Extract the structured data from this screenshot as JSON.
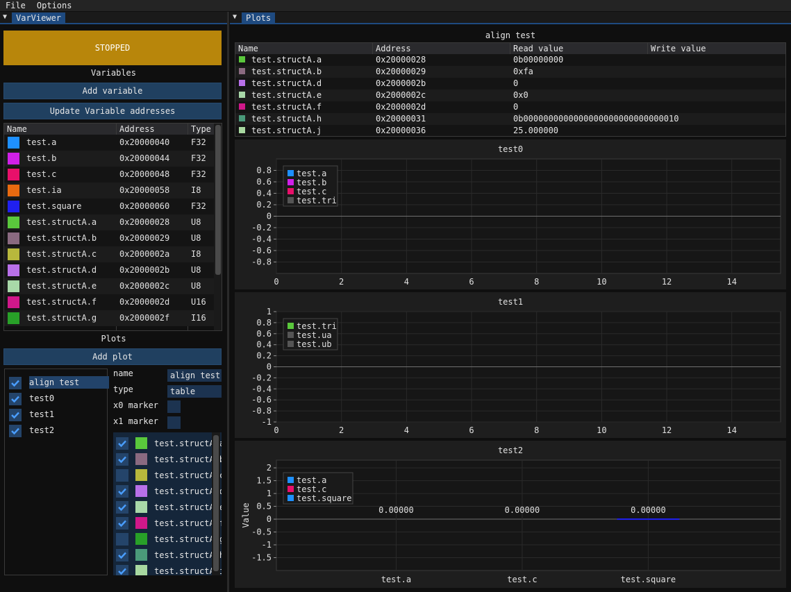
{
  "menu": {
    "file": "File",
    "options": "Options"
  },
  "varviewer": {
    "tab_title": "VarViewer",
    "status": "STOPPED",
    "status_color": "#b8860b",
    "variables_title": "Variables",
    "add_variable": "Add variable",
    "update_addresses": "Update Variable addresses",
    "table": {
      "headers": {
        "name": "Name",
        "address": "Address",
        "type": "Type"
      },
      "rows": [
        {
          "name": "test.a",
          "address": "0x20000040",
          "type": "F32",
          "color": "#1e90ff"
        },
        {
          "name": "test.b",
          "address": "0x20000044",
          "type": "F32",
          "color": "#d020e8"
        },
        {
          "name": "test.c",
          "address": "0x20000048",
          "type": "F32",
          "color": "#e8106a"
        },
        {
          "name": "test.ia",
          "address": "0x20000058",
          "type": "I8",
          "color": "#e86a10"
        },
        {
          "name": "test.square",
          "address": "0x20000060",
          "type": "F32",
          "color": "#2020f0"
        },
        {
          "name": "test.structA.a",
          "address": "0x20000028",
          "type": "U8",
          "color": "#5ac83c"
        },
        {
          "name": "test.structA.b",
          "address": "0x20000029",
          "type": "U8",
          "color": "#8a6a80"
        },
        {
          "name": "test.structA.c",
          "address": "0x2000002a",
          "type": "I8",
          "color": "#b8b83c"
        },
        {
          "name": "test.structA.d",
          "address": "0x2000002b",
          "type": "U8",
          "color": "#b870e8"
        },
        {
          "name": "test.structA.e",
          "address": "0x2000002c",
          "type": "U8",
          "color": "#a8d8a8"
        },
        {
          "name": "test.structA.f",
          "address": "0x2000002d",
          "type": "U16",
          "color": "#d0188a"
        },
        {
          "name": "test.structA.g",
          "address": "0x2000002f",
          "type": "I16",
          "color": "#28a028"
        }
      ]
    },
    "plots_title": "Plots",
    "add_plot": "Add plot",
    "plot_list": [
      {
        "label": "align test",
        "checked": true,
        "selected": true
      },
      {
        "label": "test0",
        "checked": true,
        "selected": false
      },
      {
        "label": "test1",
        "checked": true,
        "selected": false
      },
      {
        "label": "test2",
        "checked": true,
        "selected": false
      }
    ],
    "props": {
      "name_label": "name",
      "name_value": "align test",
      "type_label": "type",
      "type_value": "table",
      "x0_label": "x0 marker",
      "x1_label": "x1 marker"
    },
    "selected_vars": [
      {
        "label": "test.structA.a",
        "checked": true,
        "color": "#5ac83c"
      },
      {
        "label": "test.structA.b",
        "checked": true,
        "color": "#8a6a80"
      },
      {
        "label": "test.structA.c",
        "checked": false,
        "color": "#b8b83c"
      },
      {
        "label": "test.structA.d",
        "checked": true,
        "color": "#b870e8"
      },
      {
        "label": "test.structA.e",
        "checked": true,
        "color": "#a8d8a8"
      },
      {
        "label": "test.structA.f",
        "checked": true,
        "color": "#d0188a"
      },
      {
        "label": "test.structA.g",
        "checked": false,
        "color": "#28a028"
      },
      {
        "label": "test.structA.h",
        "checked": true,
        "color": "#4a9a7a"
      },
      {
        "label": "test.structA.i",
        "checked": true,
        "color": "#a8d8a0"
      }
    ]
  },
  "plots": {
    "tab_title": "Plots",
    "align_test": {
      "title": "align test",
      "headers": {
        "name": "Name",
        "address": "Address",
        "read": "Read value",
        "write": "Write value"
      },
      "rows": [
        {
          "name": "test.structA.a",
          "address": "0x20000028",
          "read": "0b00000000",
          "color": "#5ac83c"
        },
        {
          "name": "test.structA.b",
          "address": "0x20000029",
          "read": "0xfa",
          "color": "#8a6a80"
        },
        {
          "name": "test.structA.d",
          "address": "0x2000002b",
          "read": "0",
          "color": "#b870e8"
        },
        {
          "name": "test.structA.e",
          "address": "0x2000002c",
          "read": "0x0",
          "color": "#a8d8a8"
        },
        {
          "name": "test.structA.f",
          "address": "0x2000002d",
          "read": "0",
          "color": "#d0188a"
        },
        {
          "name": "test.structA.h",
          "address": "0x20000031",
          "read": "0b0000000000000000000000000000010",
          "color": "#4a9a7a"
        },
        {
          "name": "test.structA.j",
          "address": "0x20000036",
          "read": "25.000000",
          "color": "#a8d8a0"
        }
      ]
    }
  },
  "chart_data": [
    {
      "type": "line",
      "title": "test0",
      "xlabel": "",
      "ylabel": "",
      "xlim": [
        0,
        15.5
      ],
      "ylim": [
        -1,
        1
      ],
      "xticks": [
        "0",
        "2",
        "4",
        "6",
        "8",
        "10",
        "12",
        "14"
      ],
      "yticks": [
        "0.8",
        "0.6",
        "0.4",
        "0.2",
        "0",
        "-0.2",
        "-0.4",
        "-0.6",
        "-0.8"
      ],
      "legend": [
        {
          "name": "test.a",
          "color": "#1e90ff",
          "visible": true
        },
        {
          "name": "test.b",
          "color": "#d020e8",
          "visible": true
        },
        {
          "name": "test.c",
          "color": "#e8106a",
          "visible": true
        },
        {
          "name": "test.tri",
          "color": "#555555",
          "visible": false
        }
      ],
      "series": [],
      "grid": true,
      "legend_position": "top-left"
    },
    {
      "type": "line",
      "title": "test1",
      "xlabel": "",
      "ylabel": "",
      "xlim": [
        0,
        15.5
      ],
      "ylim": [
        -1,
        1
      ],
      "xticks": [
        "0",
        "2",
        "4",
        "6",
        "8",
        "10",
        "12",
        "14"
      ],
      "yticks": [
        "1",
        "0.8",
        "0.6",
        "0.4",
        "0.2",
        "0",
        "-0.2",
        "-0.4",
        "-0.6",
        "-0.8",
        "-1"
      ],
      "legend": [
        {
          "name": "test.tri",
          "color": "#5ac83c",
          "visible": true
        },
        {
          "name": "test.ua",
          "color": "#555555",
          "visible": false
        },
        {
          "name": "test.ub",
          "color": "#555555",
          "visible": false
        }
      ],
      "series": [],
      "grid": true,
      "legend_position": "top-left"
    },
    {
      "type": "bar",
      "title": "test2",
      "ylabel": "Value",
      "categories": [
        "test.a",
        "test.c",
        "test.square"
      ],
      "values": [
        0,
        0,
        0
      ],
      "value_labels": [
        "0.00000",
        "0.00000",
        "0.00000"
      ],
      "ylim": [
        -2,
        2.3
      ],
      "yticks": [
        "2",
        "1.5",
        "1",
        "0.5",
        "0",
        "-0.5",
        "-1",
        "-1.5"
      ],
      "legend": [
        {
          "name": "test.a",
          "color": "#1e90ff"
        },
        {
          "name": "test.c",
          "color": "#e8106a"
        },
        {
          "name": "test.square",
          "color": "#1e90ff"
        }
      ],
      "grid": true,
      "legend_position": "top-left"
    }
  ]
}
